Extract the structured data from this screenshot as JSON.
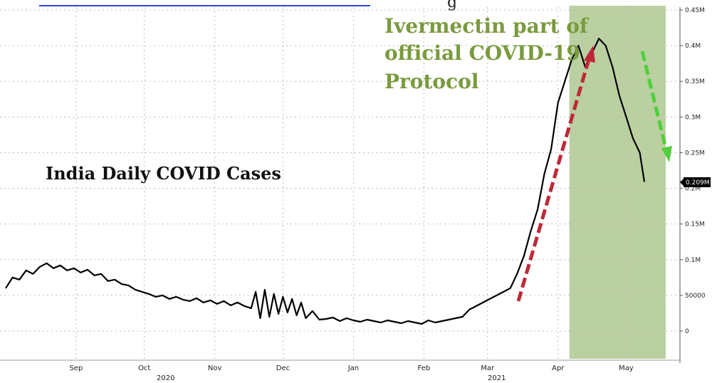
{
  "header_fragment": "g",
  "chart_data": {
    "type": "line",
    "title": "India Daily COVID Cases",
    "annotation": "Ivermectin part of official COVID-19 Protocol",
    "annotation_lines": [
      "Ivermectin part of",
      "official COVID-19",
      "Protocol"
    ],
    "x_tick_labels": [
      "Sep",
      "Oct",
      "Nov",
      "Dec",
      "Jan",
      "Feb",
      "Mar",
      "Apr",
      "May"
    ],
    "year_labels": [
      "2020",
      "2021"
    ],
    "y_tick_labels": [
      "0",
      "50000",
      "0.1M",
      "0.15M",
      "0.2M",
      "0.25M",
      "0.3M",
      "0.35M",
      "0.4M",
      "0.45M"
    ],
    "ylim": [
      0,
      450000
    ],
    "grid": true,
    "last_value_label": "0.209M",
    "shaded_period": {
      "start": "2021-04-20",
      "end": "2021-05-23"
    },
    "colors": {
      "line": "#000000",
      "shade": "#a9c48a",
      "rise_arrow": "#c0283a",
      "fall_arrow": "#4fcf3c",
      "annotation": "#7a9a3e"
    },
    "series": [
      {
        "x": [
          "2020-08-15",
          "2020-08-18",
          "2020-08-21",
          "2020-08-24",
          "2020-08-27",
          "2020-08-30",
          "2020-09-02",
          "2020-09-05",
          "2020-09-08",
          "2020-09-11",
          "2020-09-14",
          "2020-09-17",
          "2020-09-20",
          "2020-09-23",
          "2020-09-26",
          "2020-09-29",
          "2020-10-02",
          "2020-10-05",
          "2020-10-08",
          "2020-10-11",
          "2020-10-14",
          "2020-10-17",
          "2020-10-20",
          "2020-10-23",
          "2020-10-26",
          "2020-10-29",
          "2020-11-01",
          "2020-11-04",
          "2020-11-07",
          "2020-11-10",
          "2020-11-13",
          "2020-11-16",
          "2020-11-19",
          "2020-11-22",
          "2020-11-25",
          "2020-11-28",
          "2020-12-01",
          "2020-12-03",
          "2020-12-05",
          "2020-12-07",
          "2020-12-09",
          "2020-12-11",
          "2020-12-13",
          "2020-12-15",
          "2020-12-17",
          "2020-12-19",
          "2020-12-21",
          "2020-12-23",
          "2020-12-25",
          "2020-12-28",
          "2020-12-31",
          "2021-01-03",
          "2021-01-06",
          "2021-01-09",
          "2021-01-12",
          "2021-01-15",
          "2021-01-18",
          "2021-01-21",
          "2021-01-24",
          "2021-01-27",
          "2021-01-30",
          "2021-02-02",
          "2021-02-05",
          "2021-02-08",
          "2021-02-11",
          "2021-02-14",
          "2021-02-17",
          "2021-02-20",
          "2021-02-23",
          "2021-02-26",
          "2021-03-01",
          "2021-03-04",
          "2021-03-07",
          "2021-03-10",
          "2021-03-13",
          "2021-03-16",
          "2021-03-19",
          "2021-03-22",
          "2021-03-25",
          "2021-03-28",
          "2021-03-31",
          "2021-04-03",
          "2021-04-06",
          "2021-04-09",
          "2021-04-12",
          "2021-04-15",
          "2021-04-18",
          "2021-04-21",
          "2021-04-24",
          "2021-04-27",
          "2021-04-30",
          "2021-05-03",
          "2021-05-06",
          "2021-05-09",
          "2021-05-12",
          "2021-05-15",
          "2021-05-18",
          "2021-05-21",
          "2021-05-23"
        ],
        "values": [
          60000,
          75000,
          72000,
          85000,
          80000,
          90000,
          95000,
          88000,
          92000,
          85000,
          88000,
          82000,
          86000,
          78000,
          80000,
          70000,
          72000,
          66000,
          64000,
          58000,
          55000,
          52000,
          48000,
          50000,
          45000,
          48000,
          44000,
          42000,
          46000,
          40000,
          43000,
          38000,
          42000,
          36000,
          40000,
          35000,
          32000,
          55000,
          18000,
          58000,
          20000,
          52000,
          24000,
          48000,
          26000,
          45000,
          22000,
          40000,
          18000,
          28000,
          16000,
          17000,
          19000,
          14000,
          18000,
          15000,
          13000,
          16000,
          14000,
          12000,
          15000,
          13000,
          11000,
          14000,
          12000,
          10000,
          15000,
          12000,
          14000,
          16000,
          18000,
          20000,
          30000,
          35000,
          40000,
          45000,
          50000,
          55000,
          60000,
          80000,
          105000,
          140000,
          170000,
          220000,
          255000,
          320000,
          350000,
          380000,
          400000,
          370000,
          390000,
          410000,
          400000,
          370000,
          330000,
          300000,
          270000,
          250000,
          209000
        ]
      }
    ]
  }
}
